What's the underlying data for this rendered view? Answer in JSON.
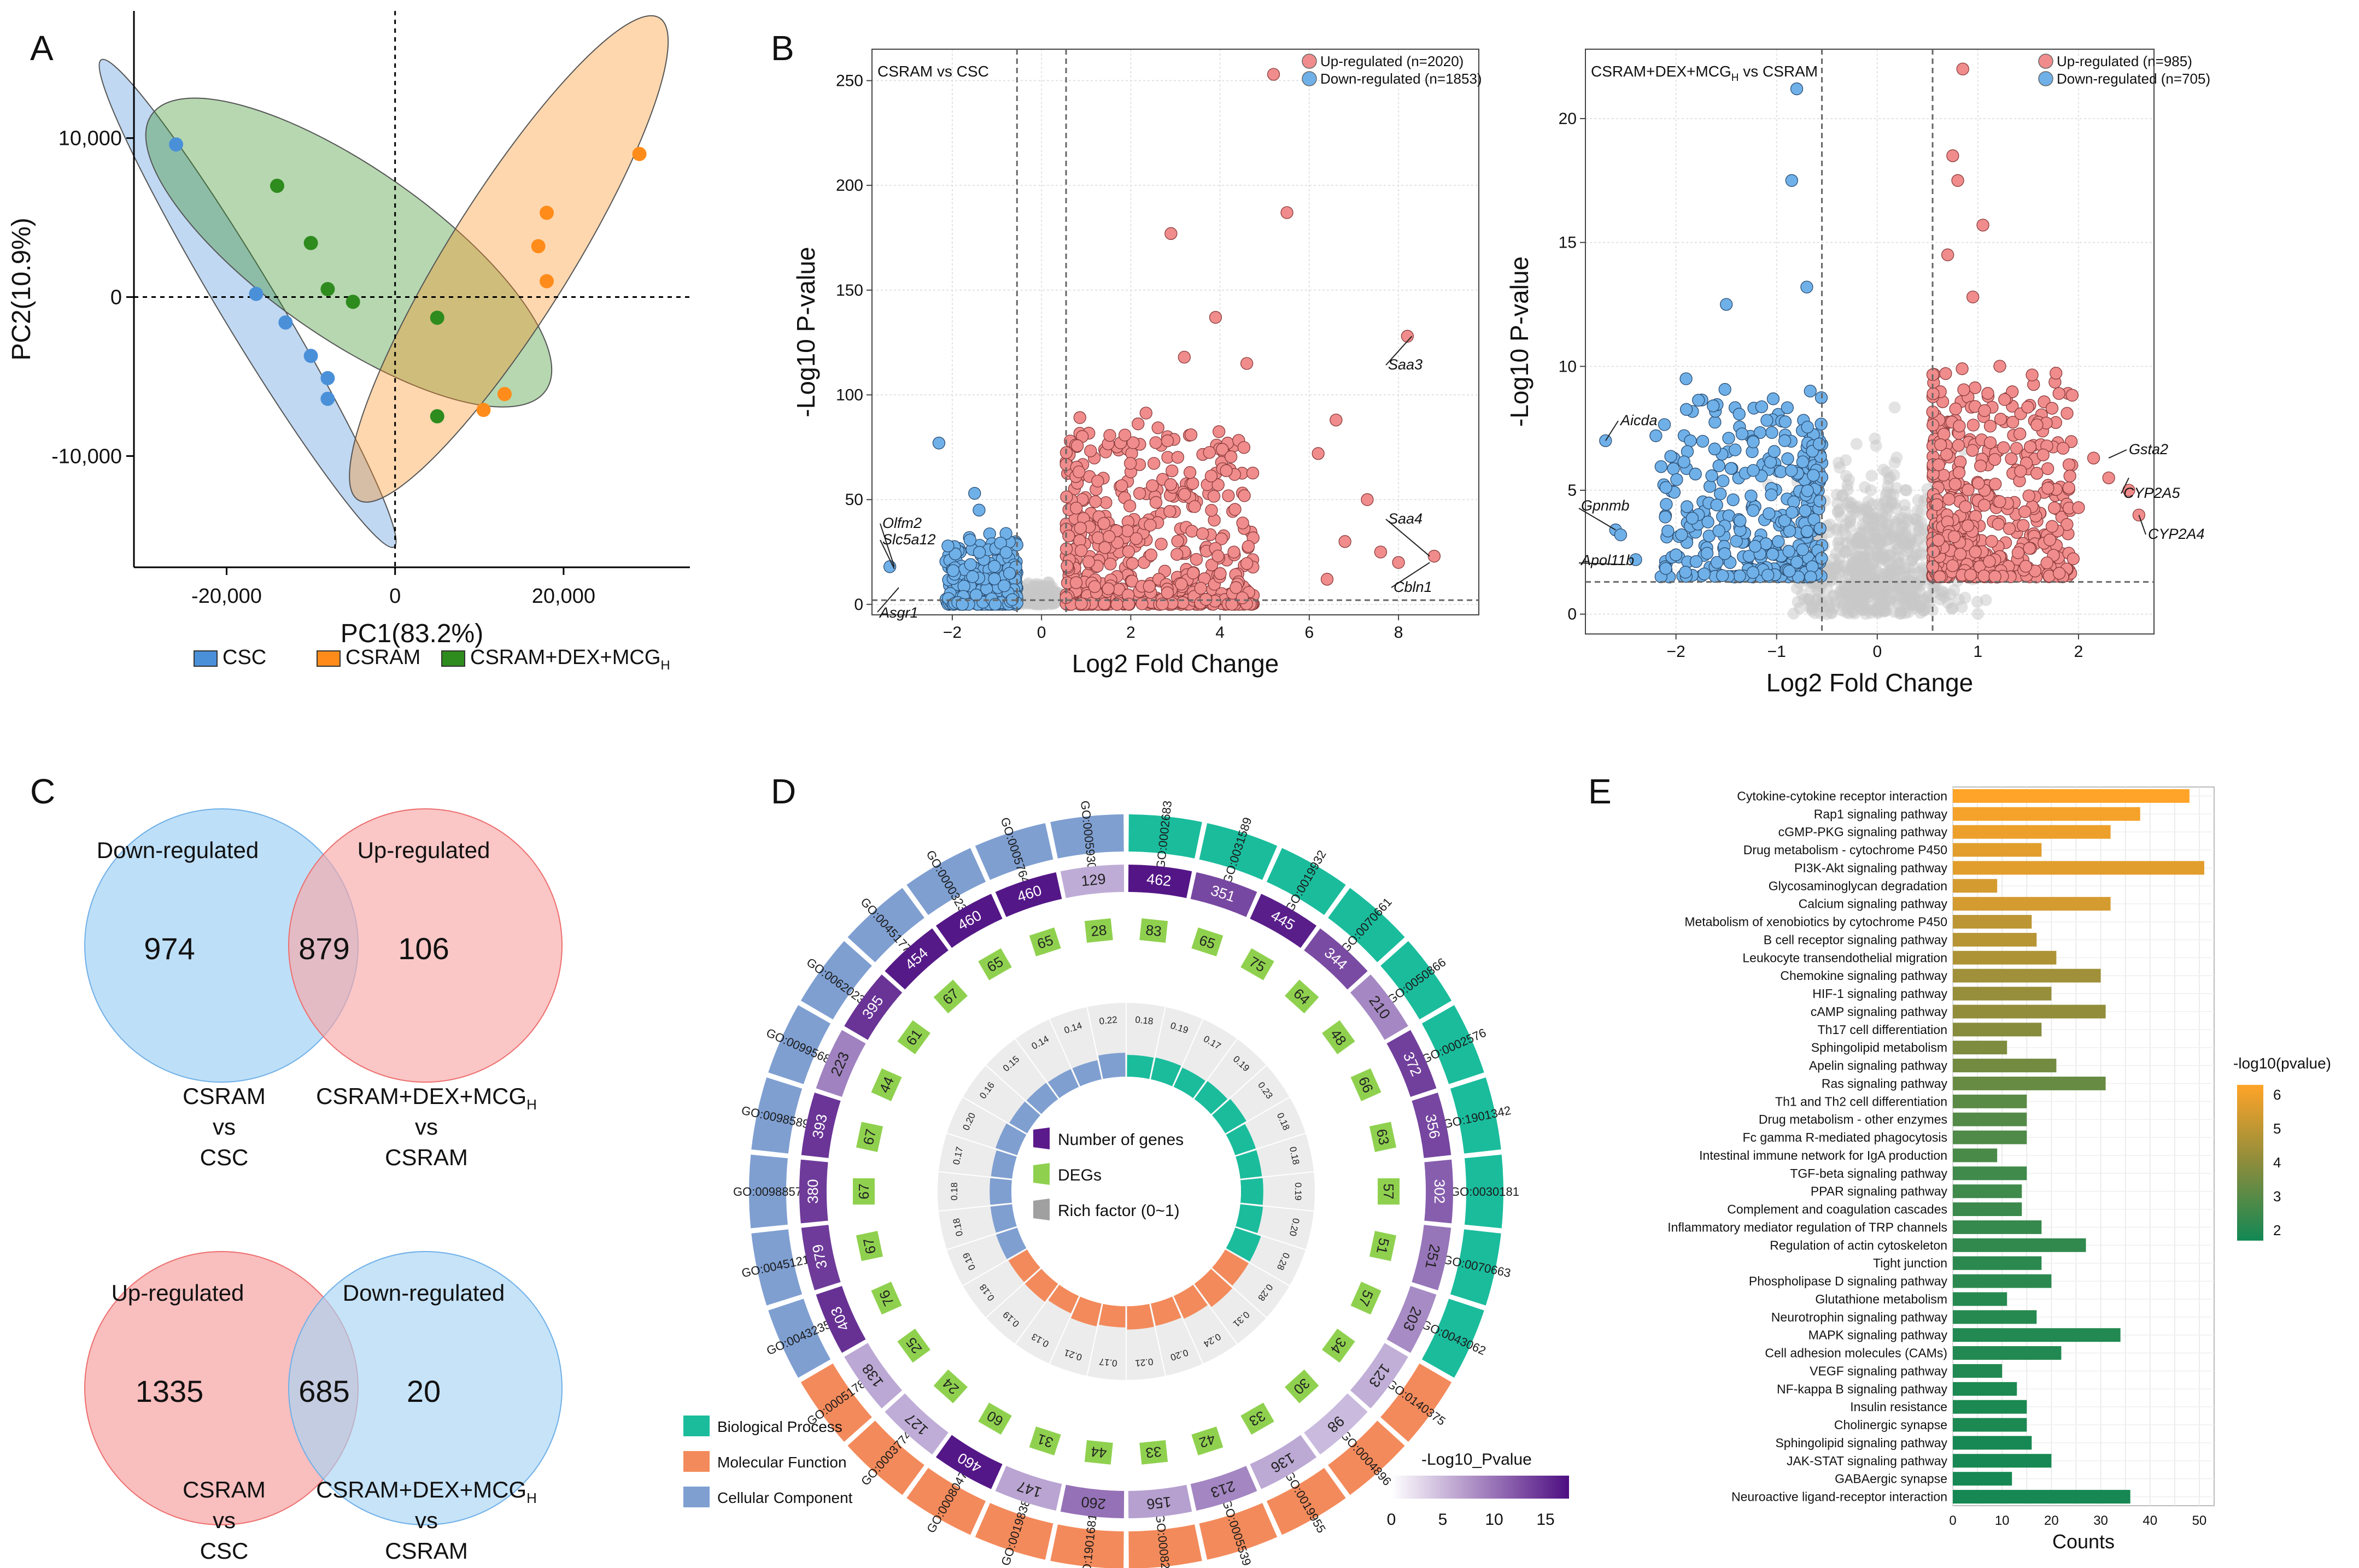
{
  "colors": {
    "csc": "#4a90d9",
    "csram": "#ff8c1a",
    "treat": "#2e8b1e",
    "up": "#f08c8c",
    "down": "#6fb0e8",
    "ns": "#c8c8c8",
    "bp": "#1abc9c",
    "mf": "#f38a5b",
    "cc": "#7f9fd1",
    "venn_blue": "#a8d4f5",
    "venn_red": "#f7a8a8"
  },
  "panels": {
    "a": "A",
    "b": "B",
    "c": "C",
    "d": "D",
    "e": "E"
  },
  "chart_data": [
    {
      "id": "pca",
      "type": "scatter",
      "xlabel": "PC1(83.2%)",
      "ylabel": "PC2(10.9%)",
      "xlim": [
        -31000,
        35000
      ],
      "ylim": [
        -17000,
        18000
      ],
      "xticks": [
        -20000,
        0,
        20000
      ],
      "xtick_labels": [
        "-20,000",
        "0",
        "20,000"
      ],
      "yticks": [
        -10000,
        0,
        10000
      ],
      "ytick_labels": [
        "-10,000",
        "0",
        "10,000"
      ],
      "legend": [
        "CSC",
        "CSRAM",
        "CSRAM+DEX+MCG"
      ],
      "legend_sub": "H",
      "series": [
        {
          "name": "CSC",
          "x": [
            -26000,
            -16500,
            -13000,
            -10000,
            -8000,
            -8000
          ],
          "y": [
            9600,
            200,
            -1600,
            -3700,
            -5100,
            -6400
          ]
        },
        {
          "name": "CSRAM",
          "x": [
            29000,
            18000,
            18000,
            17000,
            13000,
            10500
          ],
          "y": [
            9000,
            5300,
            1000,
            3200,
            -6100,
            -7100
          ]
        },
        {
          "name": "CSRAM+DEX+MCG",
          "x": [
            -14000,
            -10000,
            -8000,
            -5000,
            5000,
            5000
          ],
          "y": [
            7000,
            3400,
            500,
            -300,
            -1300,
            -7500
          ]
        }
      ]
    },
    {
      "id": "volcano1",
      "type": "scatter",
      "title": "CSRAM vs CSC",
      "xlabel": "Log2 Fold Change",
      "ylabel": "-Log10 P-value",
      "xlim": [
        -3.8,
        9.8
      ],
      "ylim": [
        -5,
        265
      ],
      "xticks": [
        -2,
        0,
        2,
        4,
        6,
        8
      ],
      "yticks": [
        0,
        50,
        100,
        150,
        200,
        250
      ],
      "legend": [
        "Up-regulated (n=2020)",
        "Down-regulated (n=1853)"
      ],
      "labels": [
        "Saa3",
        "Saa4",
        "Cbln1",
        "Olfm2",
        "Slc5a12",
        "Asgr1"
      ]
    },
    {
      "id": "volcano2",
      "type": "scatter",
      "title": "CSRAM+DEX+MCG",
      "title_sub": "H",
      "title_tail": " vs CSRAM",
      "xlabel": "Log2 Fold Change",
      "ylabel": "-Log10 P-value",
      "xlim": [
        -2.9,
        2.75
      ],
      "ylim": [
        -0.8,
        22.8
      ],
      "xticks": [
        -2,
        -1,
        0,
        1,
        2
      ],
      "yticks": [
        0,
        5,
        10,
        15,
        20
      ],
      "legend": [
        "Up-regulated (n=985)",
        "Down-regulated (n=705)"
      ],
      "labels": [
        "Gsta2",
        "CYP2A5",
        "CYP2A4",
        "Aicda",
        "Gpnmb",
        "Apol11b"
      ]
    },
    {
      "id": "venn",
      "type": "venn",
      "top": {
        "left_label": "Down-regulated",
        "right_label": "Up-regulated",
        "left": "974",
        "mid": "879",
        "right": "106",
        "cap_left": [
          "CSRAM",
          "vs",
          "CSC"
        ],
        "cap_right": [
          "CSRAM+DEX+MCG",
          "vs",
          "CSRAM"
        ]
      },
      "bottom": {
        "left_label": "Up-regulated",
        "right_label": "Down-regulated",
        "left": "1335",
        "mid": "685",
        "right": "20",
        "cap_left": [
          "CSRAM",
          "vs",
          "CSC"
        ],
        "cap_right": [
          "CSRAM+DEX+MCG",
          "vs",
          "CSRAM"
        ]
      },
      "sub": "H"
    },
    {
      "id": "circos",
      "type": "circos",
      "terms": [
        {
          "go": "GO:0002683",
          "cat": "BP",
          "genes": 462,
          "degs": 83,
          "rich": 0.18
        },
        {
          "go": "GO:0031589",
          "cat": "BP",
          "genes": 351,
          "degs": 65,
          "rich": 0.19
        },
        {
          "go": "GO:0019932",
          "cat": "BP",
          "genes": 445,
          "degs": 75,
          "rich": 0.17
        },
        {
          "go": "GO:0070661",
          "cat": "BP",
          "genes": 344,
          "degs": 64,
          "rich": 0.19
        },
        {
          "go": "GO:0050866",
          "cat": "BP",
          "genes": 210,
          "degs": 48,
          "rich": 0.23
        },
        {
          "go": "GO:0002576",
          "cat": "BP",
          "genes": 372,
          "degs": 66,
          "rich": 0.18
        },
        {
          "go": "GO:1901342",
          "cat": "BP",
          "genes": 356,
          "degs": 63,
          "rich": 0.18
        },
        {
          "go": "GO:0030181",
          "cat": "BP",
          "genes": 302,
          "degs": 57,
          "rich": 0.19
        },
        {
          "go": "GO:0070663",
          "cat": "BP",
          "genes": 251,
          "degs": 51,
          "rich": 0.2
        },
        {
          "go": "GO:0043062",
          "cat": "BP",
          "genes": 203,
          "degs": 57,
          "rich": 0.28
        },
        {
          "go": "GO:0140375",
          "cat": "MF",
          "genes": 123,
          "degs": 34,
          "rich": 0.28
        },
        {
          "go": "GO:0004896",
          "cat": "MF",
          "genes": 98,
          "degs": 30,
          "rich": 0.31
        },
        {
          "go": "GO:0019955",
          "cat": "MF",
          "genes": 136,
          "degs": 33,
          "rich": 0.24
        },
        {
          "go": "GO:0005539",
          "cat": "MF",
          "genes": 213,
          "degs": 42,
          "rich": 0.2
        },
        {
          "go": "GO:0008201",
          "cat": "MF",
          "genes": 156,
          "degs": 33,
          "rich": 0.21
        },
        {
          "go": "GO:1901681",
          "cat": "MF",
          "genes": 260,
          "degs": 44,
          "rich": 0.17
        },
        {
          "go": "GO:0019838",
          "cat": "MF",
          "genes": 147,
          "degs": 31,
          "rich": 0.21
        },
        {
          "go": "GO:0008047",
          "cat": "MF",
          "genes": 460,
          "degs": 60,
          "rich": 0.13
        },
        {
          "go": "GO:0003774",
          "cat": "MF",
          "genes": 127,
          "degs": 24,
          "rich": 0.19
        },
        {
          "go": "GO:0005178",
          "cat": "MF",
          "genes": 138,
          "degs": 25,
          "rich": 0.18
        },
        {
          "go": "GO:0043235",
          "cat": "CC",
          "genes": 403,
          "degs": 76,
          "rich": 0.19
        },
        {
          "go": "GO:0045121",
          "cat": "CC",
          "genes": 379,
          "degs": 67,
          "rich": 0.18
        },
        {
          "go": "GO:0098857",
          "cat": "CC",
          "genes": 380,
          "degs": 67,
          "rich": 0.18
        },
        {
          "go": "GO:0098589",
          "cat": "CC",
          "genes": 393,
          "degs": 67,
          "rich": 0.17
        },
        {
          "go": "GO:0099568",
          "cat": "CC",
          "genes": 223,
          "degs": 44,
          "rich": 0.2
        },
        {
          "go": "GO:0062023",
          "cat": "CC",
          "genes": 395,
          "degs": 61,
          "rich": 0.16
        },
        {
          "go": "GO:0045177",
          "cat": "CC",
          "genes": 454,
          "degs": 67,
          "rich": 0.15
        },
        {
          "go": "GO:0000323",
          "cat": "CC",
          "genes": 460,
          "degs": 65,
          "rich": 0.14
        },
        {
          "go": "GO:0005764",
          "cat": "CC",
          "genes": 460,
          "degs": 65,
          "rich": 0.14
        },
        {
          "go": "GO:0005930",
          "cat": "CC",
          "genes": 129,
          "degs": 28,
          "rich": 0.22
        }
      ],
      "inner_legend": [
        "Number of genes",
        "DEGs",
        "Rich factor (0~1)"
      ],
      "cat_legend": [
        "Biological Process",
        "Molecular Function",
        "Cellular Component"
      ],
      "colorbar_title": "-Log10_Pvalue",
      "colorbar_ticks": [
        "0",
        "5",
        "10",
        "15"
      ]
    },
    {
      "id": "kegg",
      "type": "bar",
      "orientation": "horizontal",
      "xlabel": "Counts",
      "xlim": [
        0,
        53
      ],
      "xticks": [
        0,
        10,
        20,
        30,
        40,
        50
      ],
      "legend_title": "-log10(pvalue)",
      "legend_ticks": [
        "6",
        "5",
        "4",
        "3",
        "2"
      ],
      "color_range": [
        1.5,
        6.3
      ],
      "categories": [
        "Cytokine-cytokine receptor interaction",
        "Rap1 signaling pathway",
        "cGMP-PKG signaling pathway",
        "Drug metabolism - cytochrome P450",
        "PI3K-Akt signaling pathway",
        "Glycosaminoglycan degradation",
        "Calcium signaling pathway",
        "Metabolism of xenobiotics by cytochrome P450",
        "B cell receptor signaling pathway",
        "Leukocyte transendothelial migration",
        "Chemokine signaling pathway",
        "HIF-1 signaling pathway",
        "cAMP signaling pathway",
        "Th17 cell differentiation",
        "Sphingolipid metabolism",
        "Apelin signaling pathway",
        "Ras signaling pathway",
        "Th1 and Th2 cell differentiation",
        "Drug metabolism - other enzymes",
        "Fc gamma R-mediated phagocytosis",
        "Intestinal immune network for IgA production",
        "TGF-beta signaling pathway",
        "PPAR signaling pathway",
        "Complement and coagulation cascades",
        "Inflammatory mediator regulation of TRP channels",
        "Regulation of actin cytoskeleton",
        "Tight junction",
        "Phospholipase D signaling pathway",
        "Glutathione metabolism",
        "Neurotrophin signaling pathway",
        "MAPK signaling pathway",
        "Cell adhesion molecules (CAMs)",
        "VEGF signaling pathway",
        "NF-kappa B signaling pathway",
        "Insulin resistance",
        "Cholinergic synapse",
        "Sphingolipid signaling pathway",
        "JAK-STAT signaling pathway",
        "GABAergic synapse",
        "Neuroactive ligand-receptor interaction"
      ],
      "values": [
        48,
        38,
        32,
        18,
        51,
        9,
        32,
        16,
        17,
        21,
        30,
        20,
        31,
        18,
        11,
        21,
        31,
        15,
        15,
        15,
        9,
        15,
        14,
        14,
        18,
        27,
        18,
        20,
        11,
        17,
        34,
        22,
        10,
        13,
        15,
        15,
        16,
        20,
        12,
        36
      ],
      "pvalues": [
        6.3,
        6.1,
        5.9,
        5.7,
        5.7,
        5.4,
        5.4,
        4.9,
        4.8,
        4.6,
        4.3,
        4.1,
        4.0,
        3.8,
        3.6,
        3.4,
        3.2,
        2.9,
        2.8,
        2.7,
        2.6,
        2.4,
        2.4,
        2.3,
        2.2,
        2.1,
        2.0,
        2.0,
        1.9,
        1.9,
        1.8,
        1.8,
        1.8,
        1.7,
        1.7,
        1.7,
        1.6,
        1.6,
        1.6,
        1.6
      ]
    }
  ]
}
